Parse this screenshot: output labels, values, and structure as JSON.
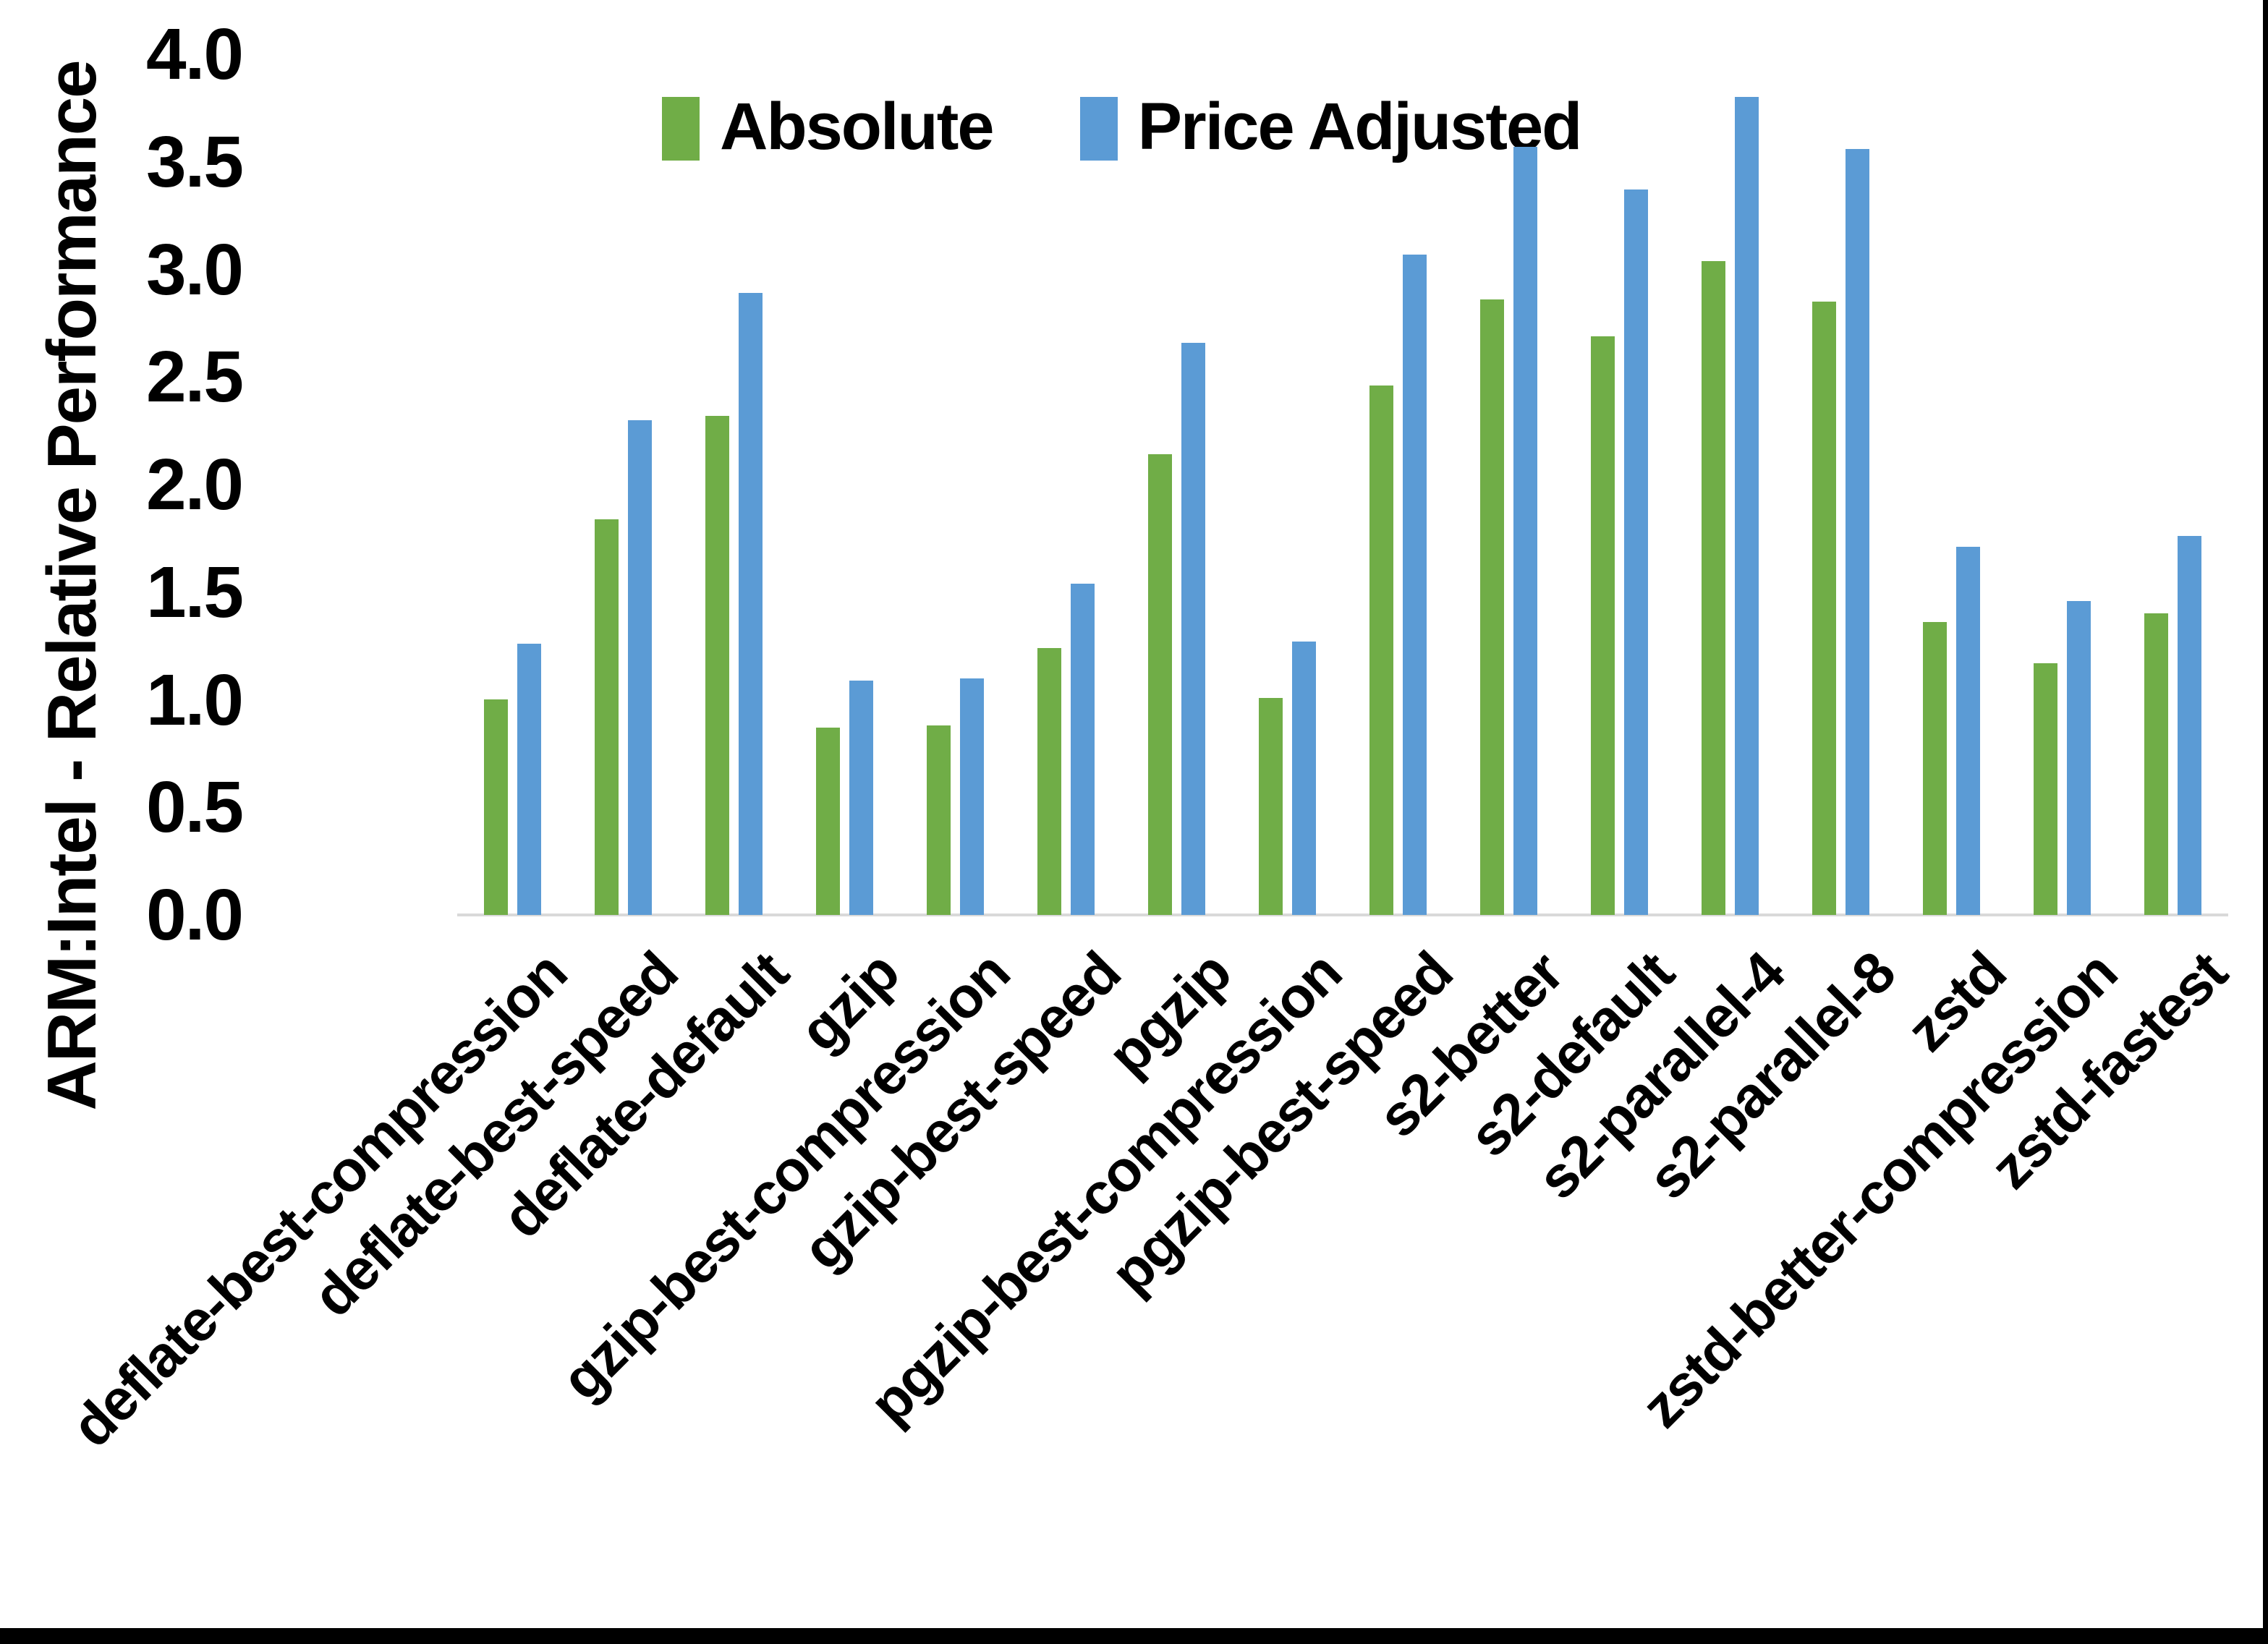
{
  "chart_data": {
    "type": "bar",
    "title": "",
    "ylabel": "ARM:Intel - Relative Performance",
    "xlabel": "",
    "ylim": [
      0,
      4
    ],
    "ytick_step": 0.5,
    "ytick_labels": [
      "0.0",
      "0.5",
      "1.0",
      "1.5",
      "2.0",
      "2.5",
      "3.0",
      "3.5",
      "4.0"
    ],
    "grid": false,
    "legend_position": "top",
    "axis_line_color": "#d9d9d9",
    "categories": [
      "deflate-best-compression",
      "deflate-best-speed",
      "deflate-default",
      "gzip",
      "gzip-best-compression",
      "gzip-best-speed",
      "pgzip",
      "pgzip-best-compression",
      "pgzip-best-speed",
      "s2-better",
      "s2-default",
      "s2-parallel-4",
      "s2-parallel-8",
      "zstd",
      "zstd-better-compression",
      "zstd-fastest"
    ],
    "series": [
      {
        "name": "Absolute",
        "color": "#70AD47",
        "values": [
          1.0,
          1.84,
          2.32,
          0.87,
          0.88,
          1.24,
          2.14,
          1.01,
          2.46,
          2.86,
          2.69,
          3.04,
          2.85,
          1.36,
          1.17,
          1.4
        ]
      },
      {
        "name": "Price Adjusted",
        "color": "#5B9BD5",
        "values": [
          1.26,
          2.3,
          2.89,
          1.09,
          1.1,
          1.54,
          2.66,
          1.27,
          3.07,
          3.57,
          3.37,
          3.8,
          3.56,
          1.71,
          1.46,
          1.76
        ]
      }
    ]
  },
  "legend": {
    "absolute_label": "Absolute",
    "price_adjusted_label": "Price Adjusted"
  },
  "axes": {
    "y_title": "ARM:Intel - Relative Performance"
  }
}
